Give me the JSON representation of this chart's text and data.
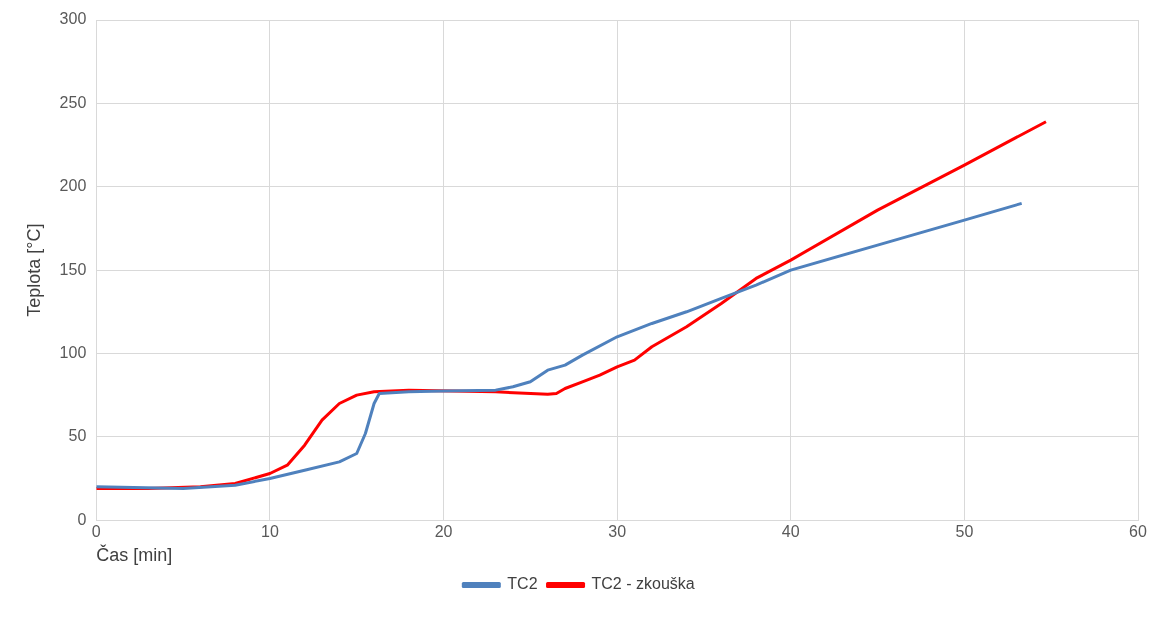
{
  "chart_data": {
    "type": "line",
    "xlabel": "Čas [min]",
    "ylabel": "Teplota [°C]",
    "xlim": [
      0,
      60
    ],
    "xticks": [
      0,
      10,
      20,
      30,
      40,
      50,
      60
    ],
    "ylim": [
      0,
      300
    ],
    "yticks": [
      0,
      50,
      100,
      150,
      200,
      250,
      300
    ],
    "grid": true,
    "legend": "bottom",
    "marker": "none",
    "line_style": "solid",
    "series": [
      {
        "name": "TC2",
        "color": "#4f81bd",
        "x": [
          0,
          5,
          8,
          10,
          12,
          14,
          15,
          15.5,
          16,
          16.3,
          18,
          20,
          23,
          24,
          25,
          26,
          27,
          28,
          30,
          32,
          34,
          36,
          38,
          40,
          45,
          50,
          53.3
        ],
        "values": [
          20,
          19,
          21,
          25,
          30,
          35,
          40,
          52,
          70,
          76,
          77,
          77.5,
          78,
          80,
          83,
          90,
          93,
          99,
          110,
          118,
          125,
          133,
          141,
          150,
          165,
          180,
          190
        ]
      },
      {
        "name": "TC2 - zkouška",
        "color": "#ff0000",
        "x": [
          0,
          3,
          6,
          8,
          10,
          11,
          12,
          13,
          14,
          15,
          16,
          18,
          23,
          26,
          26.5,
          27,
          28,
          29,
          30,
          31,
          32,
          34,
          36,
          38,
          40,
          45,
          50,
          54.7
        ],
        "values": [
          19,
          19,
          20,
          22,
          28,
          33,
          45,
          60,
          70,
          75,
          77,
          78,
          77,
          75.5,
          76,
          79,
          83,
          87,
          92,
          96,
          104,
          116,
          130,
          145,
          156,
          186,
          213,
          239
        ]
      }
    ]
  }
}
